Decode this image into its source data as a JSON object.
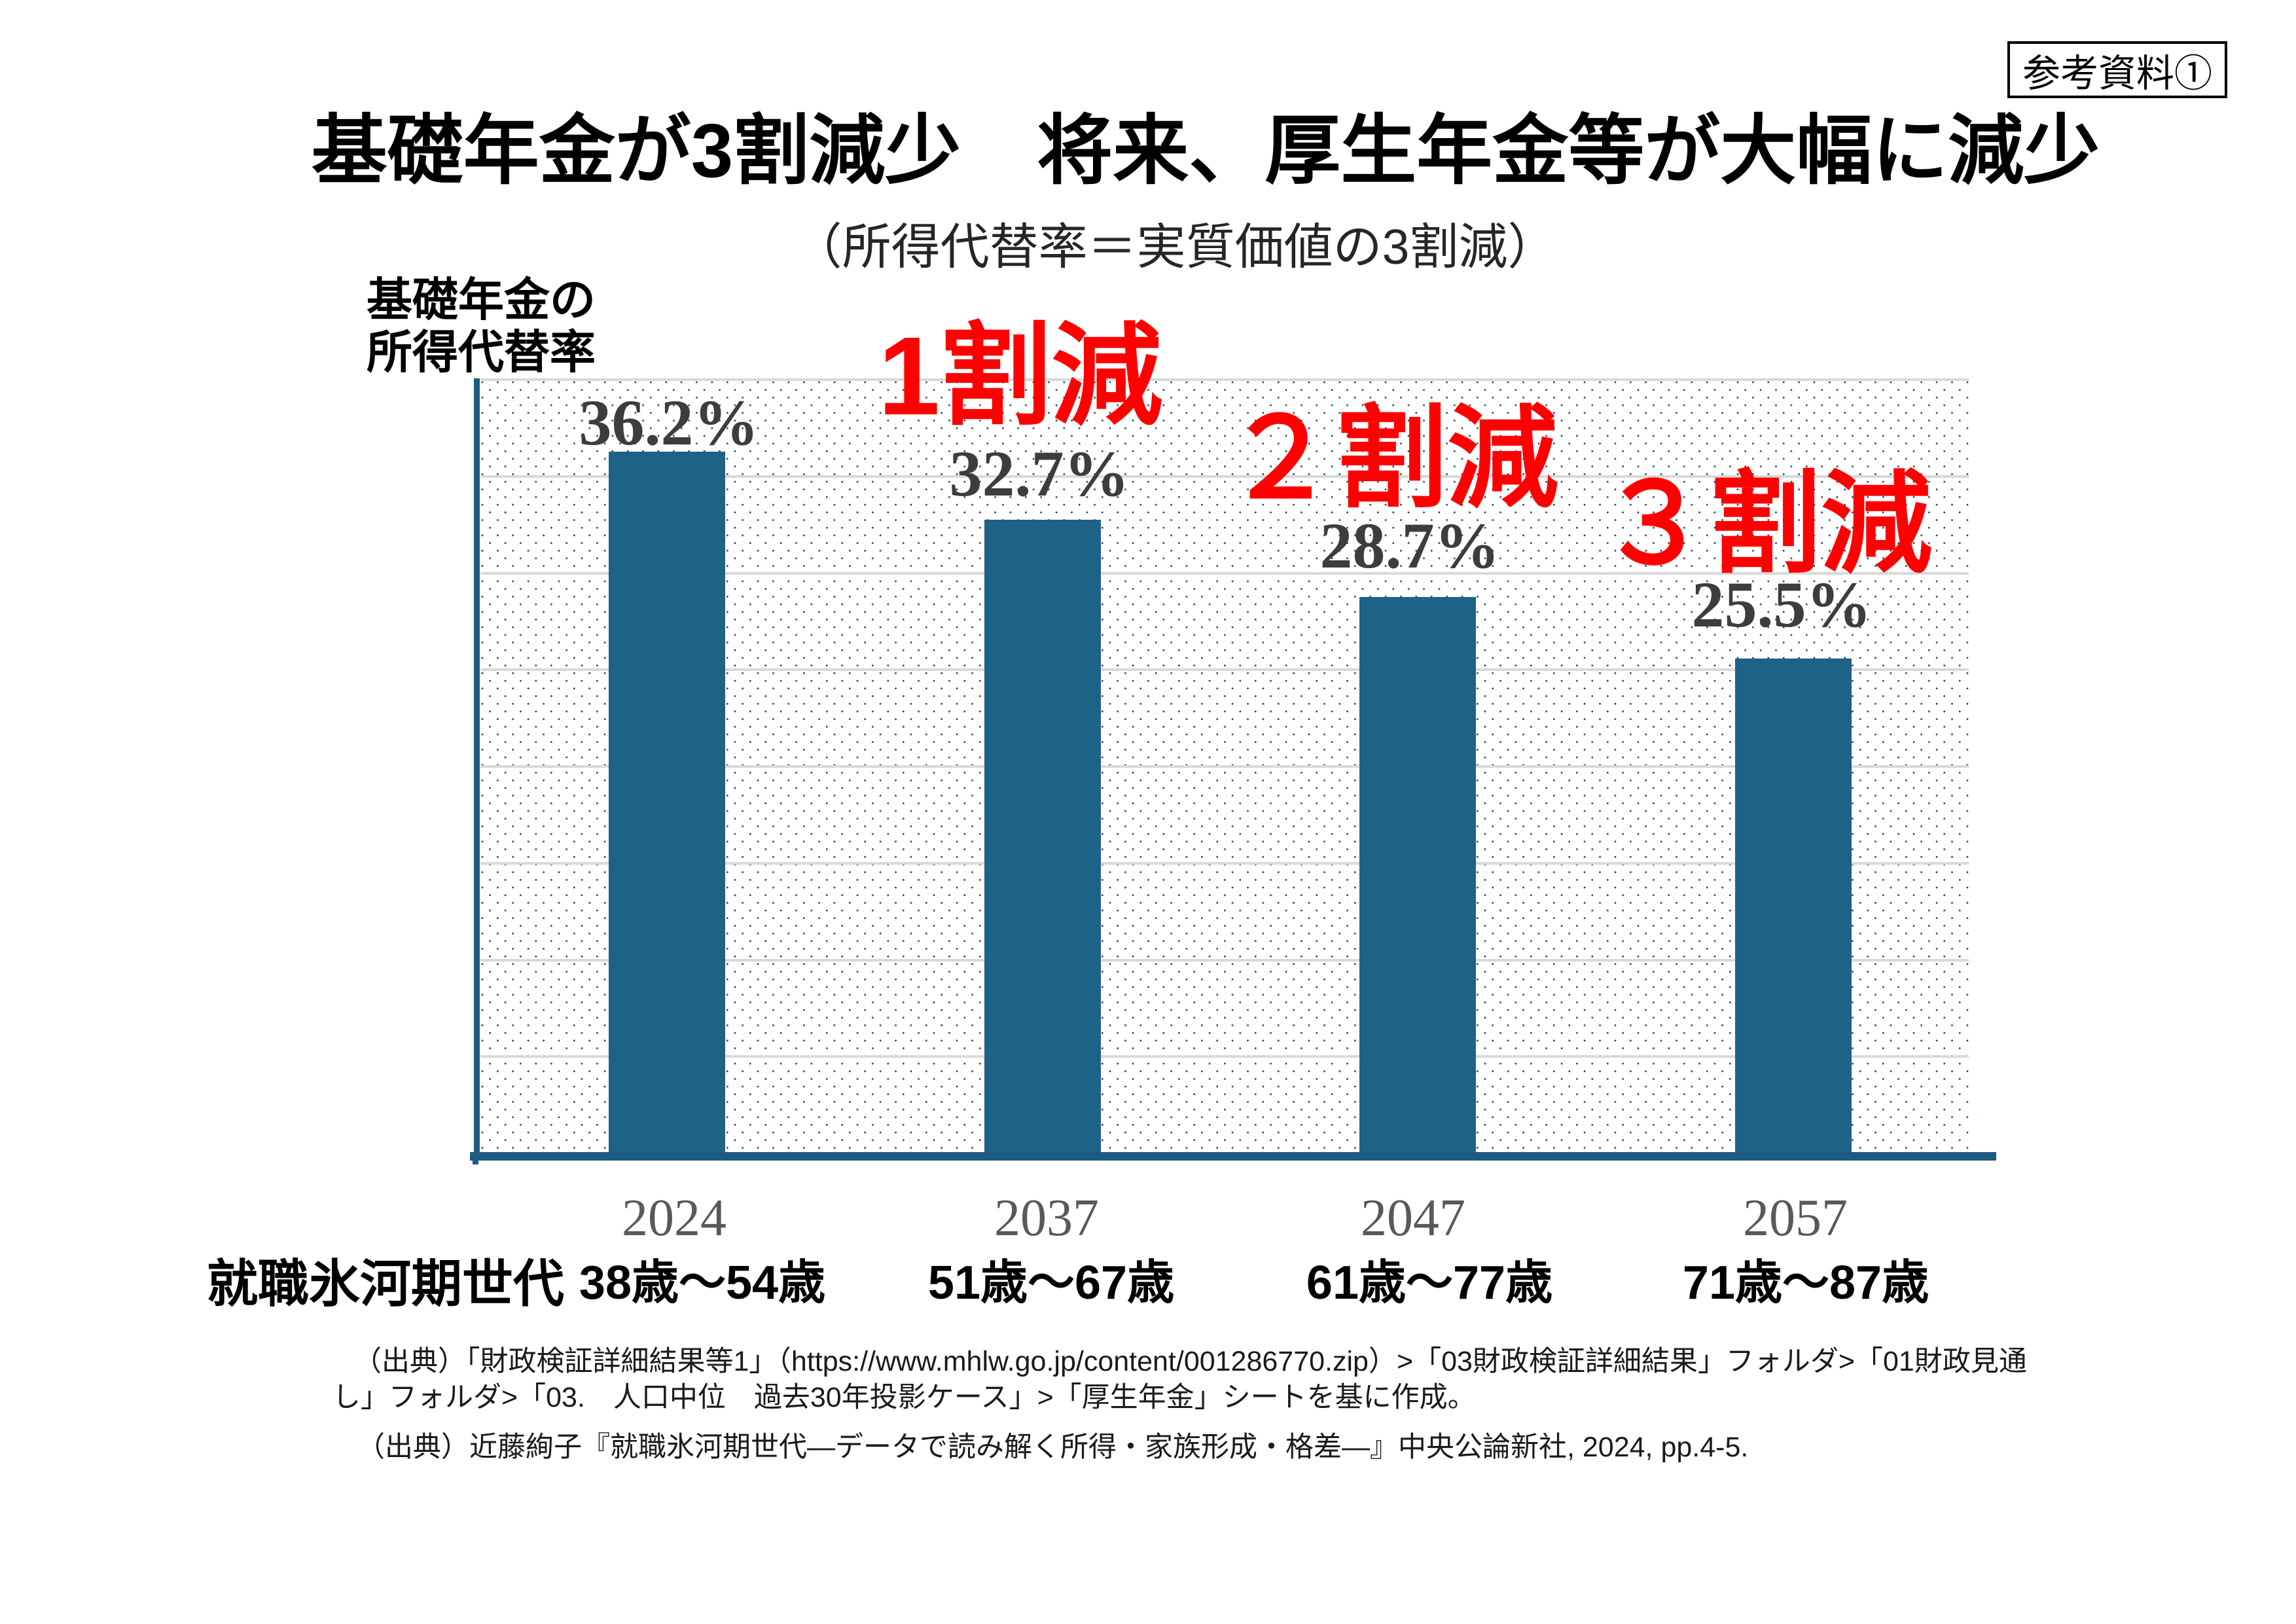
{
  "ref_label": "参考資料①",
  "title": "基礎年金が3割減少　将来、厚生年金等が大幅に減少",
  "subtitle": "（所得代替率＝実質価値の3割減）",
  "y_axis_label": {
    "line1": "基礎年金の",
    "line2": "所得代替率"
  },
  "generation_label": "就職氷河期世代",
  "chart_data": {
    "type": "bar",
    "categories": [
      "2024",
      "2037",
      "2047",
      "2057"
    ],
    "category_age_ranges": [
      "38歳～54歳",
      "51歳～67歳",
      "61歳～77歳",
      "71歳～87歳"
    ],
    "values": [
      36.2,
      32.7,
      28.7,
      25.5
    ],
    "value_labels": [
      "36.2%",
      "32.7%",
      "28.7%",
      "25.5%"
    ],
    "reduction_labels": [
      "",
      "1割減",
      "２割減",
      "３割減"
    ],
    "ylabel": "基礎年金の所得代替率",
    "ylim": [
      0,
      40
    ],
    "gridline_interval_pct": 5,
    "grid": "on",
    "legend": "none",
    "bar_color": "#1f6287",
    "dot_pattern_color": "#294c61",
    "gridline_color": "#d9d9d9",
    "axis_color": "#1d5c80",
    "value_label_color": "#3d3d3d",
    "year_label_color": "#595959",
    "reduction_label_color": "#ff0000"
  },
  "sources": [
    "（出典）「財政検証詳細結果等1」（https://www.mhlw.go.jp/content/001286770.zip）>「03財政検証詳細結果」フォルダ>「01財政見通",
    "し」フォルダ>「03.　人口中位　過去30年投影ケース」>「厚生年金」シートを基に作成。",
    "（出典）近藤絢子『就職氷河期世代―データで読み解く所得・家族形成・格差―』中央公論新社, 2024, pp.4-5."
  ]
}
